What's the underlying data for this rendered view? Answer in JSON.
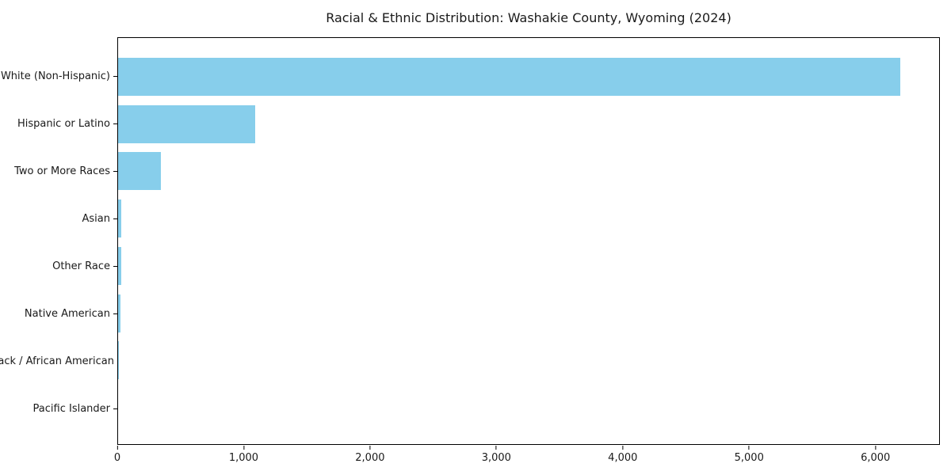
{
  "chart_data": {
    "type": "bar",
    "orientation": "horizontal",
    "title": "Racial & Ethnic Distribution: Washakie County, Wyoming (2024)",
    "categories": [
      "White (Non-Hispanic)",
      "Hispanic or Latino",
      "Two or More Races",
      "Asian",
      "Other Race",
      "Native American",
      "Black / African American",
      "Pacific Islander"
    ],
    "values": [
      6200,
      1085,
      340,
      28,
      25,
      21,
      6,
      0
    ],
    "bar_color": "#87CEEB",
    "axis_color": "#000000",
    "text_color": "#1a1a1a",
    "background_color": "#ffffff",
    "xlabel": "",
    "ylabel": "",
    "xlim": [
      0,
      6510
    ],
    "xticks": [
      0,
      1000,
      2000,
      3000,
      4000,
      5000,
      6000
    ],
    "xtick_labels": [
      "0",
      "1,000",
      "2,000",
      "3,000",
      "4,000",
      "5,000",
      "6,000"
    ],
    "grid": false,
    "legend": null
  }
}
